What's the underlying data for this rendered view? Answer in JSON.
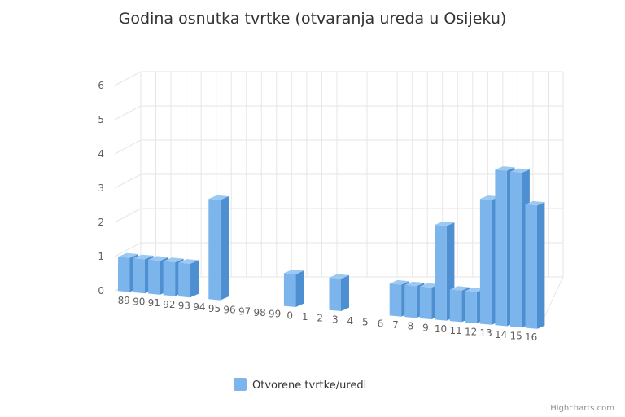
{
  "chart_data": {
    "type": "bar",
    "title": "Godina osnutka tvrtke (otvaranja ureda u Osijeku)",
    "categories": [
      "89",
      "90",
      "91",
      "92",
      "93",
      "94",
      "95",
      "96",
      "97",
      "98",
      "99",
      "0",
      "1",
      "2",
      "3",
      "4",
      "5",
      "6",
      "7",
      "8",
      "9",
      "10",
      "11",
      "12",
      "13",
      "14",
      "15",
      "16"
    ],
    "series": [
      {
        "name": "Otvorene tvrtke/uredi",
        "color": "#7cb5ec",
        "values": [
          1,
          1,
          1,
          1,
          1,
          0,
          3,
          0,
          0,
          0,
          0,
          1,
          0,
          0,
          1,
          0,
          0,
          0,
          1,
          1,
          1,
          3,
          1,
          1,
          4,
          5,
          5,
          4
        ]
      }
    ],
    "ylim": [
      0,
      6
    ],
    "yticks": [
      0,
      1,
      2,
      3,
      4,
      5,
      6
    ],
    "grid": true,
    "legend": "bottom-center",
    "is_3d": true
  },
  "credits": "Highcharts.com"
}
